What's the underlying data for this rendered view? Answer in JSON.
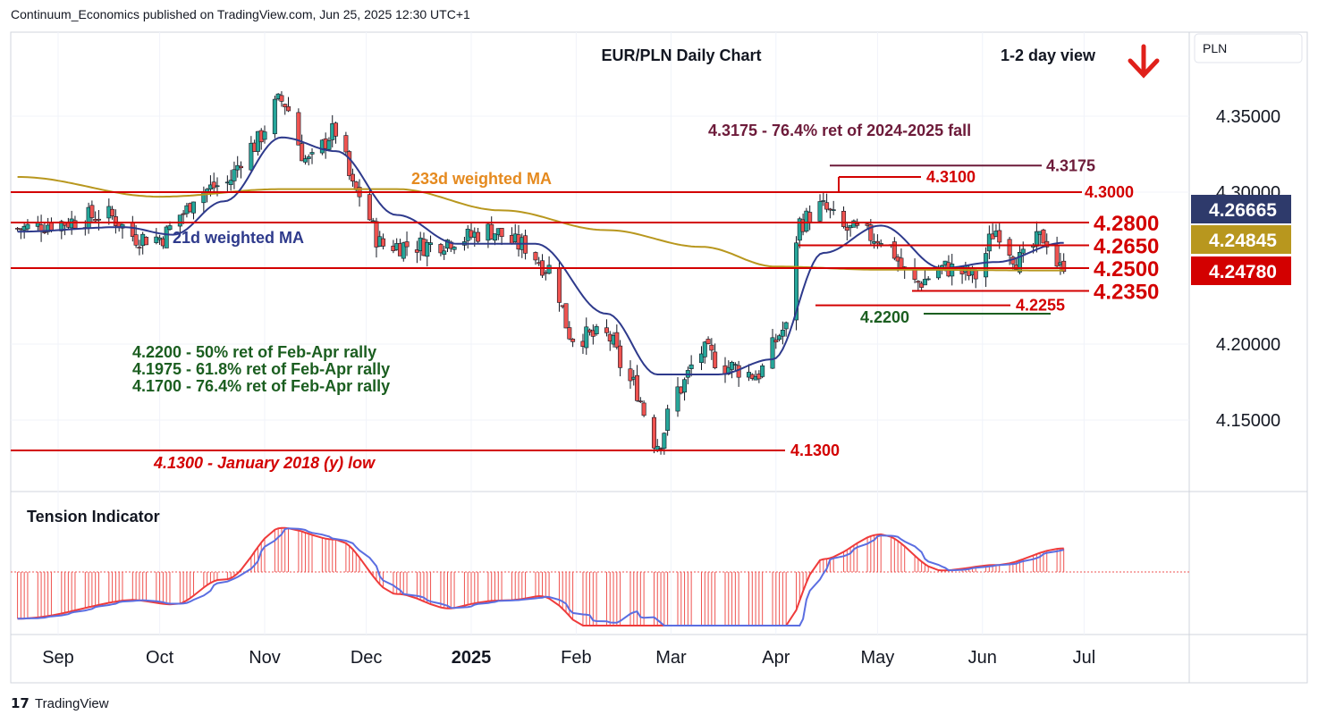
{
  "header": {
    "text": "Continuum_Economics published on TradingView.com, Jun 25, 2025 12:30 UTC+1"
  },
  "footer": {
    "logo": "17",
    "text": "TradingView"
  },
  "chart_data": {
    "type": "candlestick",
    "title": "EUR/PLN Daily Chart",
    "view_label": "1-2 day view",
    "view_direction": "down",
    "currency": "PLN",
    "price_axis": {
      "range": [
        4.105,
        4.39
      ],
      "ticks": [
        {
          "value": 4.35,
          "label": "4.35000"
        },
        {
          "value": 4.3,
          "label": "4.30000"
        },
        {
          "value": 4.2,
          "label": "4.20000"
        },
        {
          "value": 4.15,
          "label": "4.15000"
        }
      ]
    },
    "time_axis": {
      "labels": [
        "Sep",
        "Oct",
        "Nov",
        "Dec",
        "2025",
        "Feb",
        "Mar",
        "Apr",
        "May",
        "Jun",
        "Jul"
      ]
    },
    "price_badges": [
      {
        "value": "4.26665",
        "color": "#2e3a6b",
        "price": 4.26665
      },
      {
        "value": "4.24845",
        "color": "#b8971e",
        "price": 4.24845
      },
      {
        "value": "4.24780",
        "color": "#d30000",
        "price": 4.2478
      }
    ],
    "levels": [
      {
        "price": 4.3,
        "label": "4.3000",
        "color": "#d30000",
        "extent": "full"
      },
      {
        "price": 4.28,
        "label": "4.2800",
        "color": "#d30000",
        "extent": "full"
      },
      {
        "price": 4.265,
        "label": "4.2650",
        "color": "#d30000",
        "extent": "partial"
      },
      {
        "price": 4.25,
        "label": "4.2500",
        "color": "#d30000",
        "extent": "full"
      },
      {
        "price": 4.235,
        "label": "4.2350",
        "color": "#d30000",
        "extent": "partial"
      },
      {
        "price": 4.2255,
        "label": "4.2255",
        "color": "#d30000",
        "extent": "partial"
      },
      {
        "price": 4.22,
        "label": "4.2200",
        "color": "#1b5e20",
        "extent": "partial"
      },
      {
        "price": 4.31,
        "label": "4.3100",
        "color": "#d30000",
        "extent": "partial"
      },
      {
        "price": 4.3175,
        "label": "4.3175",
        "color": "#6d1b3a",
        "extent": "partial"
      },
      {
        "price": 4.13,
        "label": "4.1300",
        "color": "#d30000",
        "extent": "partial"
      }
    ],
    "annotations": {
      "retracement_top": "4.3175 - 76.4% ret of 2024-2025 fall",
      "ma233_label": "233d weighted MA",
      "ma21_label": "21d weighted MA",
      "fib_lines": [
        "4.2200 - 50% ret of Feb-Apr rally",
        "4.1975 - 61.8% ret of Feb-Apr rally",
        "4.1700 - 76.4% ret of Feb-Apr rally"
      ],
      "low_label": "4.1300 - January 2018 (y) low"
    },
    "indicator": {
      "title": "Tension Indicator"
    },
    "colors": {
      "up": "#26a69a",
      "down": "#ef5350",
      "ma21": "#2e3a8c",
      "ma233": "#b8971e",
      "level": "#d30000",
      "fib": "#1b5e20"
    },
    "series": [
      {
        "name": "EUR/PLN",
        "anchor_points": [
          {
            "date": "2024-08-20",
            "close": 4.276
          },
          {
            "date": "2024-09-01",
            "close": 4.28
          },
          {
            "date": "2024-09-15",
            "close": 4.285
          },
          {
            "date": "2024-09-25",
            "close": 4.27
          },
          {
            "date": "2024-10-01",
            "close": 4.27
          },
          {
            "date": "2024-10-08",
            "close": 4.286
          },
          {
            "date": "2024-10-12",
            "close": 4.3
          },
          {
            "date": "2024-10-20",
            "close": 4.305
          },
          {
            "date": "2024-10-28",
            "close": 4.33
          },
          {
            "date": "2024-11-06",
            "close": 4.36
          },
          {
            "date": "2024-11-14",
            "close": 4.32
          },
          {
            "date": "2024-11-22",
            "close": 4.34
          },
          {
            "date": "2024-11-28",
            "close": 4.3
          },
          {
            "date": "2024-12-06",
            "close": 4.265
          },
          {
            "date": "2024-12-18",
            "close": 4.265
          },
          {
            "date": "2024-12-30",
            "close": 4.27
          },
          {
            "date": "2025-01-06",
            "close": 4.275
          },
          {
            "date": "2025-01-16",
            "close": 4.265
          },
          {
            "date": "2025-01-24",
            "close": 4.25
          },
          {
            "date": "2025-01-31",
            "close": 4.205
          },
          {
            "date": "2025-02-10",
            "close": 4.205
          },
          {
            "date": "2025-02-17",
            "close": 4.175
          },
          {
            "date": "2025-02-25",
            "close": 4.135
          },
          {
            "date": "2025-03-03",
            "close": 4.17
          },
          {
            "date": "2025-03-10",
            "close": 4.195
          },
          {
            "date": "2025-03-18",
            "close": 4.185
          },
          {
            "date": "2025-03-26",
            "close": 4.18
          },
          {
            "date": "2025-04-04",
            "close": 4.21
          },
          {
            "date": "2025-04-08",
            "close": 4.28
          },
          {
            "date": "2025-04-14",
            "close": 4.29
          },
          {
            "date": "2025-04-22",
            "close": 4.275
          },
          {
            "date": "2025-05-02",
            "close": 4.27
          },
          {
            "date": "2025-05-12",
            "close": 4.24
          },
          {
            "date": "2025-05-21",
            "close": 4.25
          },
          {
            "date": "2025-05-30",
            "close": 4.245
          },
          {
            "date": "2025-06-05",
            "close": 4.275
          },
          {
            "date": "2025-06-12",
            "close": 4.255
          },
          {
            "date": "2025-06-19",
            "close": 4.27
          },
          {
            "date": "2025-06-25",
            "close": 4.2478
          }
        ]
      },
      {
        "name": "21d weighted MA",
        "anchor_points": [
          {
            "date": "2024-08-20",
            "value": 4.274
          },
          {
            "date": "2024-09-20",
            "value": 4.277
          },
          {
            "date": "2024-10-05",
            "value": 4.272
          },
          {
            "date": "2024-10-20",
            "value": 4.294
          },
          {
            "date": "2024-11-06",
            "value": 4.336
          },
          {
            "date": "2024-11-22",
            "value": 4.327
          },
          {
            "date": "2024-12-10",
            "value": 4.285
          },
          {
            "date": "2024-12-28",
            "value": 4.266
          },
          {
            "date": "2025-01-20",
            "value": 4.266
          },
          {
            "date": "2025-02-10",
            "value": 4.22
          },
          {
            "date": "2025-02-25",
            "value": 4.18
          },
          {
            "date": "2025-03-15",
            "value": 4.18
          },
          {
            "date": "2025-03-31",
            "value": 4.19
          },
          {
            "date": "2025-04-15",
            "value": 4.26
          },
          {
            "date": "2025-05-02",
            "value": 4.278
          },
          {
            "date": "2025-05-20",
            "value": 4.25
          },
          {
            "date": "2025-06-05",
            "value": 4.254
          },
          {
            "date": "2025-06-25",
            "value": 4.26665
          }
        ]
      },
      {
        "name": "233d weighted MA",
        "anchor_points": [
          {
            "date": "2024-08-20",
            "value": 4.31
          },
          {
            "date": "2024-10-01",
            "value": 4.297
          },
          {
            "date": "2024-11-06",
            "value": 4.302
          },
          {
            "date": "2024-12-10",
            "value": 4.302
          },
          {
            "date": "2025-01-10",
            "value": 4.288
          },
          {
            "date": "2025-02-10",
            "value": 4.275
          },
          {
            "date": "2025-03-10",
            "value": 4.264
          },
          {
            "date": "2025-04-01",
            "value": 4.251
          },
          {
            "date": "2025-05-01",
            "value": 4.249
          },
          {
            "date": "2025-06-25",
            "value": 4.24845
          }
        ]
      }
    ]
  }
}
